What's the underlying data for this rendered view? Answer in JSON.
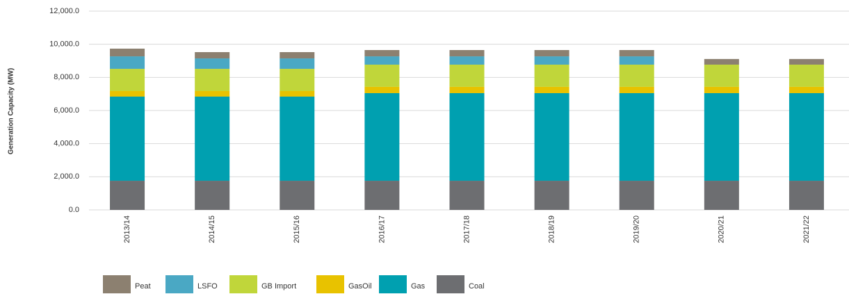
{
  "chart_data": {
    "type": "stacked-bar",
    "y_label": "Generation Capacity (MW)",
    "categories": [
      "2013/14",
      "2014/15",
      "2015/16",
      "2016/17",
      "2017/18",
      "2018/19",
      "2019/20",
      "2020/21",
      "2021/22"
    ],
    "series": [
      {
        "name": "Coal",
        "color": "#6d6e71",
        "values": [
          1760,
          1760,
          1760,
          1760,
          1760,
          1760,
          1760,
          1760,
          1760
        ]
      },
      {
        "name": "Gas",
        "color": "#00a0b0",
        "values": [
          5080,
          5080,
          5080,
          5290,
          5290,
          5290,
          5290,
          5290,
          5290
        ]
      },
      {
        "name": "GasOil",
        "color": "#e8c200",
        "values": [
          335,
          335,
          335,
          380,
          380,
          380,
          380,
          380,
          380
        ]
      },
      {
        "name": "GB Import",
        "color": "#c0d63a",
        "values": [
          1340,
          1340,
          1340,
          1340,
          1340,
          1340,
          1340,
          1340,
          1340
        ]
      },
      {
        "name": "LSFO",
        "color": "#4aa8c4",
        "values": [
          755,
          630,
          630,
          500,
          500,
          500,
          500,
          0,
          0
        ]
      },
      {
        "name": "Peat",
        "color": "#8c8070",
        "values": [
          465,
          380,
          380,
          380,
          380,
          380,
          380,
          340,
          340
        ]
      }
    ],
    "ylim": [
      0,
      12000
    ],
    "yticks": [
      {
        "value": 0,
        "label": "0.0"
      },
      {
        "value": 2000,
        "label": "2,000.0"
      },
      {
        "value": 4000,
        "label": "4,000.0"
      },
      {
        "value": 6000,
        "label": "6,000.0"
      },
      {
        "value": 8000,
        "label": "8,000.0"
      },
      {
        "value": 10000,
        "label": "10,000.0"
      },
      {
        "value": 12000,
        "label": "12,000.0"
      }
    ],
    "grid": true
  }
}
